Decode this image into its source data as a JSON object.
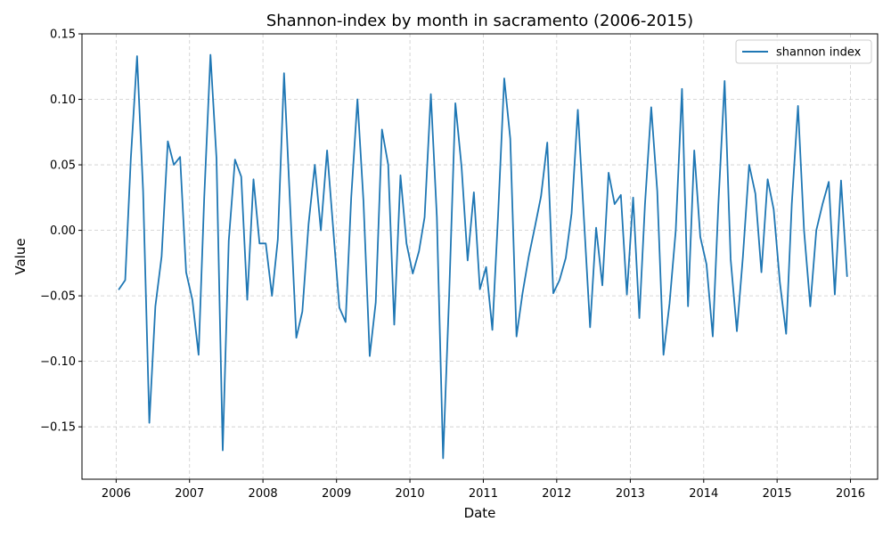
{
  "chart_data": {
    "type": "line",
    "title": "Shannon-index by month in sacramento (2006-2015)",
    "xlabel": "Date",
    "ylabel": "Value",
    "xlim": [
      "2005-07-15",
      "2016-05-15"
    ],
    "ylim": [
      -0.19,
      0.15
    ],
    "x_ticks": [
      "2006",
      "2007",
      "2008",
      "2009",
      "2010",
      "2011",
      "2012",
      "2013",
      "2014",
      "2015",
      "2016"
    ],
    "y_ticks": [
      "0.15",
      "0.10",
      "0.05",
      "0.00",
      "−0.05",
      "−0.10",
      "−0.15"
    ],
    "y_tick_values": [
      0.15,
      0.1,
      0.05,
      0.0,
      -0.05,
      -0.1,
      -0.15
    ],
    "grid": true,
    "legend_position": "top-right",
    "colors": {
      "series": "#1f77b4",
      "grid": "#cccccc",
      "axes": "#000000"
    },
    "series": [
      {
        "name": "shannon index",
        "x_start": "2006-01",
        "x_step": "1 month",
        "values": [
          -0.045,
          -0.038,
          0.055,
          0.133,
          0.03,
          -0.147,
          -0.058,
          -0.02,
          0.068,
          0.05,
          0.056,
          -0.032,
          -0.053,
          -0.095,
          0.025,
          0.134,
          0.055,
          -0.168,
          -0.008,
          0.054,
          0.041,
          -0.053,
          0.039,
          -0.01,
          -0.01,
          -0.05,
          -0.007,
          0.12,
          0.02,
          -0.082,
          -0.062,
          0.005,
          0.05,
          0.0,
          0.061,
          0.002,
          -0.059,
          -0.07,
          0.025,
          0.1,
          0.022,
          -0.096,
          -0.055,
          0.077,
          0.05,
          -0.072,
          0.042,
          -0.01,
          -0.033,
          -0.016,
          0.01,
          0.104,
          0.01,
          -0.174,
          -0.05,
          0.097,
          0.048,
          -0.023,
          0.029,
          -0.045,
          -0.028,
          -0.076,
          0.01,
          0.116,
          0.07,
          -0.081,
          -0.048,
          -0.02,
          0.003,
          0.026,
          0.067,
          -0.048,
          -0.038,
          -0.021,
          0.013,
          0.092,
          0.01,
          -0.074,
          0.002,
          -0.042,
          0.044,
          0.02,
          0.027,
          -0.049,
          0.025,
          -0.067,
          0.02,
          0.094,
          0.03,
          -0.095,
          -0.056,
          0.0,
          0.108,
          -0.058,
          0.061,
          -0.005,
          -0.026,
          -0.081,
          0.02,
          0.114,
          -0.022,
          -0.077,
          -0.02,
          0.05,
          0.028,
          -0.032,
          0.039,
          0.016,
          -0.04,
          -0.079,
          0.02,
          0.095,
          0.0,
          -0.058,
          0.0,
          0.02,
          0.037,
          -0.049,
          0.038,
          -0.035
        ]
      }
    ]
  }
}
